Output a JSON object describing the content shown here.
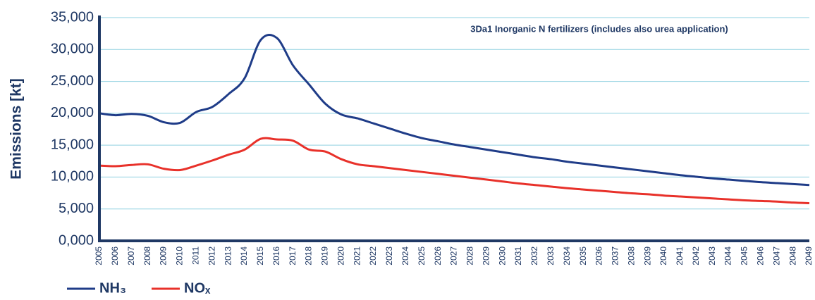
{
  "chart_data": {
    "type": "line",
    "annotation": "3Da1 Inorganic N fertilizers (includes also urea application)",
    "y_label": "Emissions [kt]",
    "categories": [
      "2005",
      "2006",
      "2007",
      "2008",
      "2009",
      "2010",
      "2011",
      "2012",
      "2013",
      "2014",
      "2015",
      "2016",
      "2017",
      "2018",
      "2019",
      "2020",
      "2021",
      "2022",
      "2023",
      "2024",
      "2025",
      "2026",
      "2027",
      "2028",
      "2029",
      "2030",
      "2031",
      "2032",
      "2033",
      "2034",
      "2035",
      "2036",
      "2037",
      "2038",
      "2039",
      "2040",
      "2041",
      "2042",
      "2043",
      "2044",
      "2045",
      "2046",
      "2047",
      "2048",
      "2049"
    ],
    "series": [
      {
        "name": "NH₃",
        "color": "#1f3c88",
        "values": [
          20000,
          19700,
          19900,
          19600,
          18600,
          18500,
          20200,
          21000,
          23000,
          25500,
          31500,
          31800,
          27500,
          24500,
          21500,
          19800,
          19200,
          18400,
          17600,
          16800,
          16100,
          15600,
          15100,
          14700,
          14300,
          13900,
          13500,
          13100,
          12800,
          12400,
          12100,
          11800,
          11500,
          11200,
          10900,
          10600,
          10300,
          10050,
          9800,
          9600,
          9400,
          9200,
          9050,
          8900,
          8750
        ]
      },
      {
        "name": "NOₓ",
        "color": "#e8312a",
        "values": [
          11800,
          11700,
          11900,
          12000,
          11300,
          11100,
          11800,
          12600,
          13500,
          14300,
          16000,
          15900,
          15700,
          14300,
          14000,
          12800,
          12000,
          11700,
          11400,
          11100,
          10800,
          10500,
          10200,
          9900,
          9600,
          9300,
          9000,
          8750,
          8500,
          8250,
          8050,
          7850,
          7650,
          7450,
          7300,
          7100,
          6950,
          6800,
          6650,
          6500,
          6350,
          6250,
          6150,
          6000,
          5900
        ]
      }
    ],
    "ylim": [
      0,
      35000
    ],
    "yticks": [
      {
        "value": 0,
        "label": "0,000"
      },
      {
        "value": 5000,
        "label": "5,000"
      },
      {
        "value": 10000,
        "label": "10,000"
      },
      {
        "value": 15000,
        "label": "15,000"
      },
      {
        "value": 20000,
        "label": "20,000"
      },
      {
        "value": 25000,
        "label": "25,000"
      },
      {
        "value": 30000,
        "label": "30,000"
      },
      {
        "value": 35000,
        "label": "35,000"
      }
    ],
    "grid": true
  }
}
